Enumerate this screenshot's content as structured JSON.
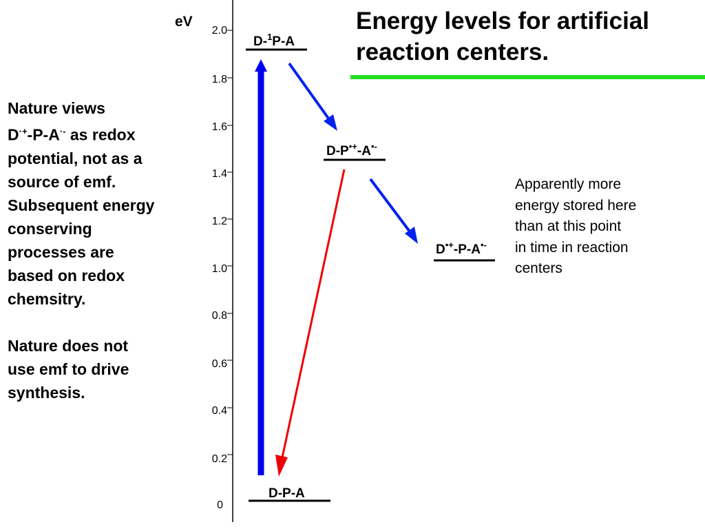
{
  "title": {
    "line1": "Energy levels for artificial",
    "line2": "reaction centers."
  },
  "left_text": {
    "para1": [
      "Nature views",
      "D·+-P-A·- as redox",
      "potential, not as a",
      "source of emf.",
      "Subsequent energy",
      "conserving",
      "processes are",
      "based on redox",
      "chemsitry."
    ],
    "para1_line2": {
      "pre": "D",
      "sup1": "·+",
      "mid": "-P-A",
      "sup2": "·-",
      "post": " as redox"
    },
    "para2": [
      "Nature does not",
      "use emf to drive",
      "synthesis."
    ]
  },
  "right_note": [
    "Apparently more",
    "energy stored here",
    "than at this point",
    "in time in reaction",
    "centers"
  ],
  "axis": {
    "unit_label": "eV",
    "ticks": [
      "2.0",
      "1.8",
      "1.6",
      "1.4",
      "1.2",
      "1.0",
      "0.8",
      "0.6",
      "0.4",
      "0.2",
      "0"
    ],
    "tick_values": [
      2.0,
      1.8,
      1.6,
      1.4,
      1.2,
      1.0,
      0.8,
      0.6,
      0.4,
      0.2,
      0.0
    ]
  },
  "states": {
    "excited": {
      "pre": "D-",
      "sup": "1",
      "post": "P-A"
    },
    "cs1": {
      "pre": "D-P",
      "sup1": "•+",
      "mid": "-A",
      "sup2": "•-"
    },
    "cs2": {
      "pre": "D",
      "sup1": "•+",
      "mid": "-P-A",
      "sup2": "•-"
    },
    "ground": {
      "text": "D-P-A"
    }
  },
  "colors": {
    "title_rule": "#22dd22",
    "excitation_arrow": "#0000ee",
    "transfer_arrow": "#0022ee",
    "recombination_arrow": "#ee0000"
  }
}
